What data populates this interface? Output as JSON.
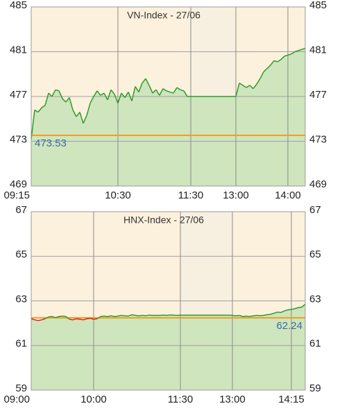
{
  "chart_data": [
    {
      "type": "line",
      "title": "VN-Index - 27/06",
      "color": "#2e9a2e",
      "fill": "#cfe5bd",
      "below_color": "#2e9a2e",
      "background": "#fcf1dc",
      "break_background": "#f7f0e0",
      "values": [
        473.2,
        475.8,
        475.6,
        476.0,
        476.2,
        477.3,
        477.0,
        477.6,
        477.5,
        476.8,
        476.5,
        476.9,
        475.8,
        475.2,
        475.6,
        474.6,
        475.3,
        476.4,
        477.0,
        477.5,
        477.1,
        477.3,
        476.7,
        477.6,
        477.2,
        476.4,
        477.3,
        476.9,
        477.4,
        476.6,
        477.9,
        477.4,
        478.2,
        478.6,
        478.0,
        477.3,
        477.6,
        477.1,
        477.7,
        477.5,
        477.4,
        477.3,
        477.8,
        477.6,
        477.5,
        477.0,
        477.0,
        477.0,
        477.0,
        477.0,
        477.0,
        477.0,
        477.0,
        477.0,
        477.0,
        477.0,
        477.0,
        477.0,
        477.0,
        477.0,
        478.2,
        478.0,
        477.8,
        478.0,
        477.7,
        478.1,
        478.6,
        479.2,
        479.5,
        479.8,
        480.2,
        480.1,
        480.3,
        480.6,
        480.7,
        480.8,
        481.0,
        481.1,
        481.2,
        481.3
      ],
      "xlim": [
        0,
        79
      ],
      "xticks": [
        {
          "value": 0,
          "label": "09:15"
        },
        {
          "value": 25,
          "label": "10:30"
        },
        {
          "value": 46,
          "label": "11:30"
        },
        {
          "value": 59,
          "label": "13:00"
        },
        {
          "value": 74,
          "label": "14:00"
        }
      ],
      "ylim": [
        469,
        485
      ],
      "yticks": [
        469,
        473,
        477,
        481,
        485
      ],
      "grid": true,
      "reference_line": 473.53,
      "reference_color": "#f0a020",
      "reference_label_side": "left"
    },
    {
      "type": "line",
      "title": "HNX-Index - 27/06",
      "color": "#2e9a2e",
      "fill": "#cfe5bd",
      "below_color": "#d62020",
      "background": "#fcf1dc",
      "break_background": "#f7f0e0",
      "values": [
        62.2,
        62.15,
        62.12,
        62.15,
        62.2,
        62.28,
        62.3,
        62.25,
        62.3,
        62.32,
        62.3,
        62.18,
        62.15,
        62.2,
        62.18,
        62.15,
        62.2,
        62.22,
        62.18,
        62.2,
        62.3,
        62.32,
        62.3,
        62.33,
        62.3,
        62.32,
        62.35,
        62.33,
        62.32,
        62.38,
        62.35,
        62.33,
        62.35,
        62.34,
        62.36,
        62.35,
        62.35,
        62.35,
        62.36,
        62.35,
        62.37,
        62.36,
        62.35,
        62.36,
        62.36,
        62.36,
        62.36,
        62.36,
        62.36,
        62.36,
        62.36,
        62.36,
        62.36,
        62.36,
        62.36,
        62.36,
        62.36,
        62.36,
        62.35,
        62.33,
        62.35,
        62.3,
        62.32,
        62.3,
        62.33,
        62.35,
        62.34,
        62.35,
        62.38,
        62.4,
        62.45,
        62.5,
        62.48,
        62.55,
        62.6,
        62.62,
        62.65,
        62.7,
        62.72,
        62.85
      ],
      "xlim": [
        0,
        79
      ],
      "xticks": [
        {
          "value": 0,
          "label": "09:00"
        },
        {
          "value": 18,
          "label": "10:00"
        },
        {
          "value": 43,
          "label": "11:30"
        },
        {
          "value": 58,
          "label": "13:00"
        },
        {
          "value": 75,
          "label": "14:15"
        }
      ],
      "ylim": [
        59,
        67
      ],
      "yticks": [
        59,
        61,
        63,
        65,
        67
      ],
      "grid": true,
      "reference_line": 62.24,
      "reference_color": "#f0a020",
      "reference_label_side": "right"
    }
  ]
}
